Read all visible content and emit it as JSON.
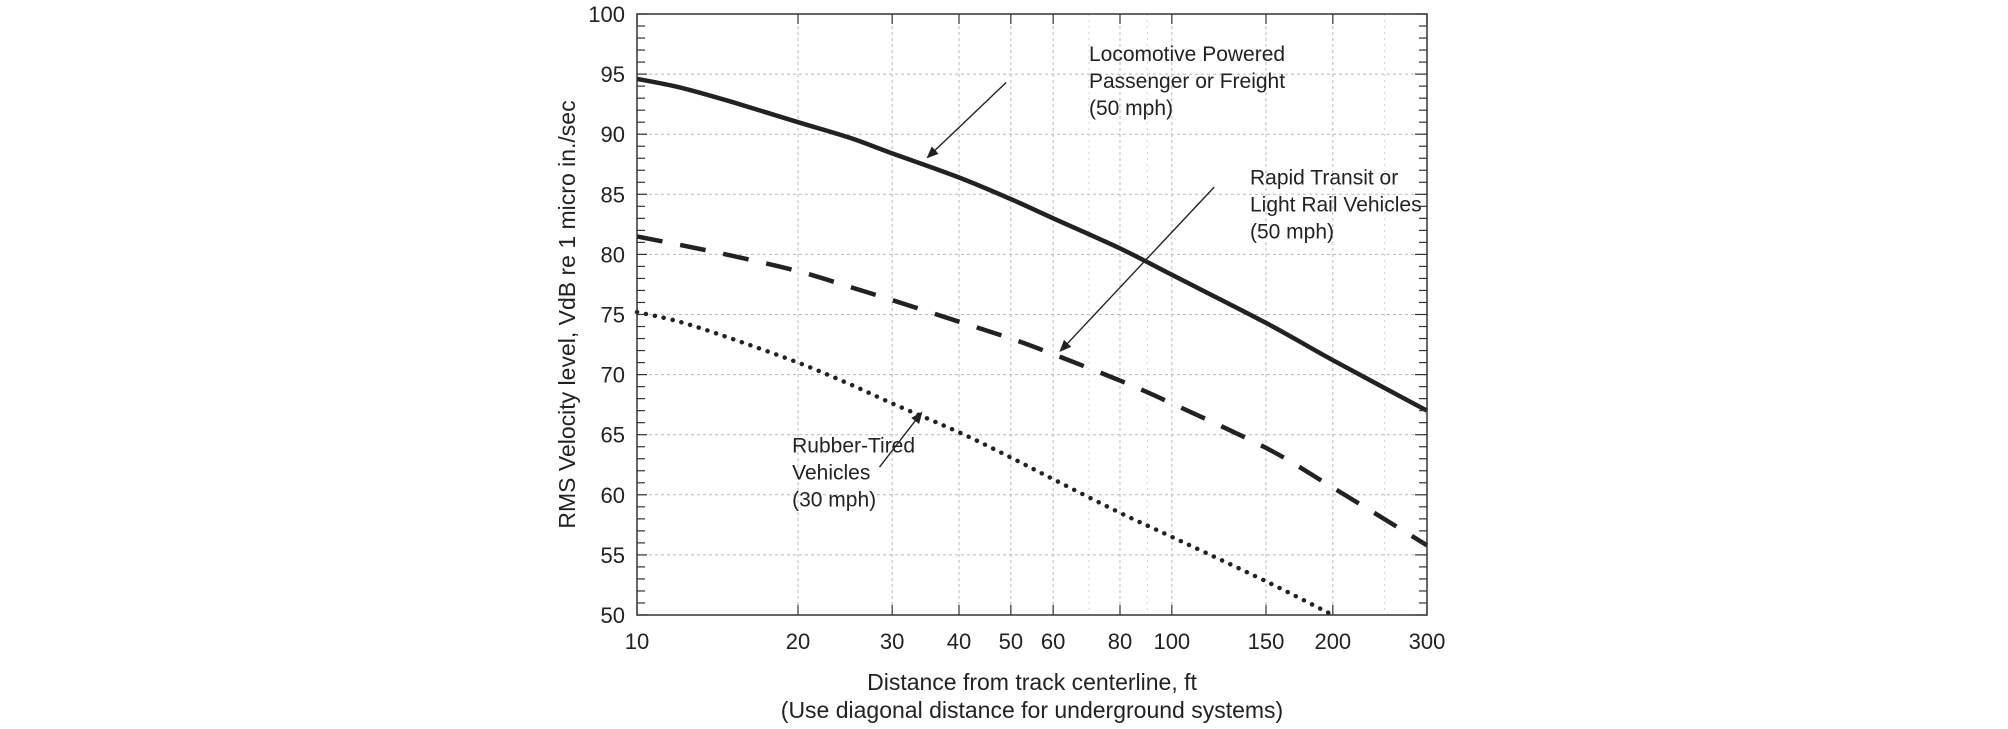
{
  "chart_data": {
    "type": "line",
    "title": "",
    "xlabel": "Distance from track centerline, ft",
    "xlabel_note": "(Use diagonal distance for underground systems)",
    "ylabel": "RMS Velocity level, VdB re 1 micro in./sec",
    "x_scale": "log",
    "xlim": [
      10,
      300
    ],
    "ylim": [
      50,
      100
    ],
    "x_ticks": [
      10,
      20,
      30,
      40,
      50,
      60,
      80,
      100,
      150,
      200,
      300
    ],
    "y_ticks": [
      50,
      55,
      60,
      65,
      70,
      75,
      80,
      85,
      90,
      95,
      100
    ],
    "grid": true,
    "legend": "none",
    "series": [
      {
        "style": "solid",
        "color": "#222222",
        "x": [
          10,
          12,
          15,
          20,
          25,
          30,
          40,
          50,
          60,
          80,
          100,
          150,
          200,
          300
        ],
        "y": [
          94.6,
          93.9,
          92.7,
          91.0,
          89.7,
          88.4,
          86.4,
          84.6,
          83.0,
          80.5,
          78.3,
          74.3,
          71.2,
          67.0
        ]
      },
      {
        "style": "dashed",
        "color": "#222222",
        "x": [
          10,
          12,
          15,
          20,
          25,
          30,
          40,
          50,
          60,
          80,
          100,
          150,
          200,
          300
        ],
        "y": [
          81.5,
          80.8,
          79.9,
          78.6,
          77.3,
          76.2,
          74.4,
          73.0,
          71.7,
          69.5,
          67.6,
          63.9,
          60.6,
          55.8
        ]
      },
      {
        "style": "dotted",
        "color": "#222222",
        "x": [
          10,
          12,
          15,
          20,
          25,
          30,
          40,
          50,
          60,
          80,
          100,
          150,
          200
        ],
        "y": [
          75.2,
          74.4,
          73.0,
          71.0,
          69.2,
          67.6,
          65.2,
          63.1,
          61.3,
          58.5,
          56.5,
          52.8,
          50.0
        ]
      }
    ],
    "annotations": [
      {
        "lines": [
          "Locomotive Powered",
          "Passenger or Freight",
          "(50 mph)"
        ],
        "series": 0,
        "text_at": [
          70,
          96.1
        ],
        "arrow_from": [
          49,
          94.3
        ],
        "arrow_to": [
          35,
          88.1
        ]
      },
      {
        "lines": [
          "Rapid Transit or",
          "Light Rail Vehicles",
          "(50 mph)"
        ],
        "series": 1,
        "text_at": [
          140,
          85.8
        ],
        "arrow_from": [
          120,
          85.6
        ],
        "arrow_to": [
          62,
          72.0
        ]
      },
      {
        "lines": [
          "Rubber-Tired",
          "Vehicles",
          "(30 mph)"
        ],
        "series": 2,
        "text_at": [
          19.5,
          63.5
        ],
        "arrow_from": [
          28.4,
          62.3
        ],
        "arrow_to": [
          34,
          66.8
        ]
      }
    ]
  }
}
